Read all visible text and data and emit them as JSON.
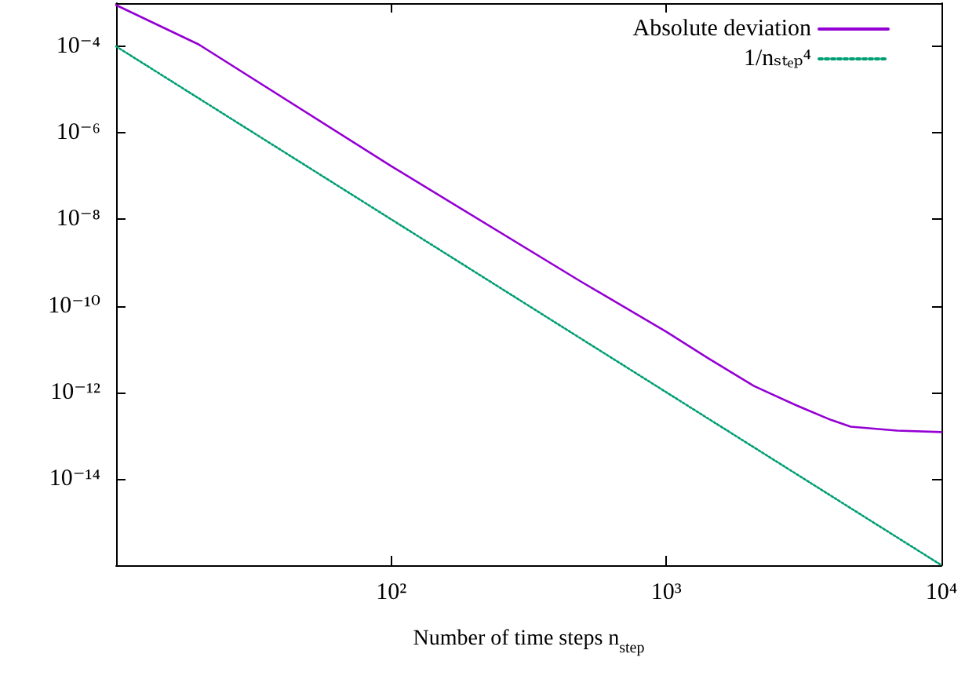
{
  "chart_data": {
    "type": "line",
    "xlabel": "Number of time steps n$_{step}$",
    "log": "xy",
    "grid": false,
    "legend": "top right",
    "marker": "none",
    "xlim": [
      10,
      10000
    ],
    "xticks": [
      {
        "value": 10,
        "label": null
      },
      {
        "value": 100,
        "label": "10²"
      },
      {
        "value": 1000,
        "label": "10³"
      },
      {
        "value": 10000,
        "label": "10⁴"
      }
    ],
    "ylim": [
      1e-16,
      0.001
    ],
    "yticks": [
      {
        "value": 1e-14,
        "label": "10⁻¹⁴"
      },
      {
        "value": 1e-12,
        "label": "10⁻¹²"
      },
      {
        "value": 1e-10,
        "label": "10⁻¹⁰"
      },
      {
        "value": 1e-08,
        "label": "10⁻⁸"
      },
      {
        "value": 1e-06,
        "label": "10⁻⁶"
      },
      {
        "value": 0.0001,
        "label": "10⁻⁴"
      }
    ],
    "series": [
      {
        "name": "Absolute deviation",
        "color": "#9400d3",
        "line_style": "solid",
        "x": [
          10,
          20,
          100,
          487,
          1000,
          1416,
          2080,
          2944,
          3963,
          4677,
          6887,
          10000
        ],
        "values": [
          0.0009,
          0.00011,
          1.7e-07,
          3.7e-10,
          2.5e-11,
          6.2e-12,
          1.4e-12,
          5.1e-13,
          2.3e-13,
          1.6e-13,
          1.3e-13,
          1.2e-13
        ]
      },
      {
        "name": "1/nₛₜₑₚ⁴",
        "color": "#009e73",
        "line_style": "dotted",
        "x": [
          10,
          100,
          1000,
          10000
        ],
        "values": [
          0.0001,
          1e-08,
          1e-12,
          1e-16
        ]
      }
    ]
  }
}
